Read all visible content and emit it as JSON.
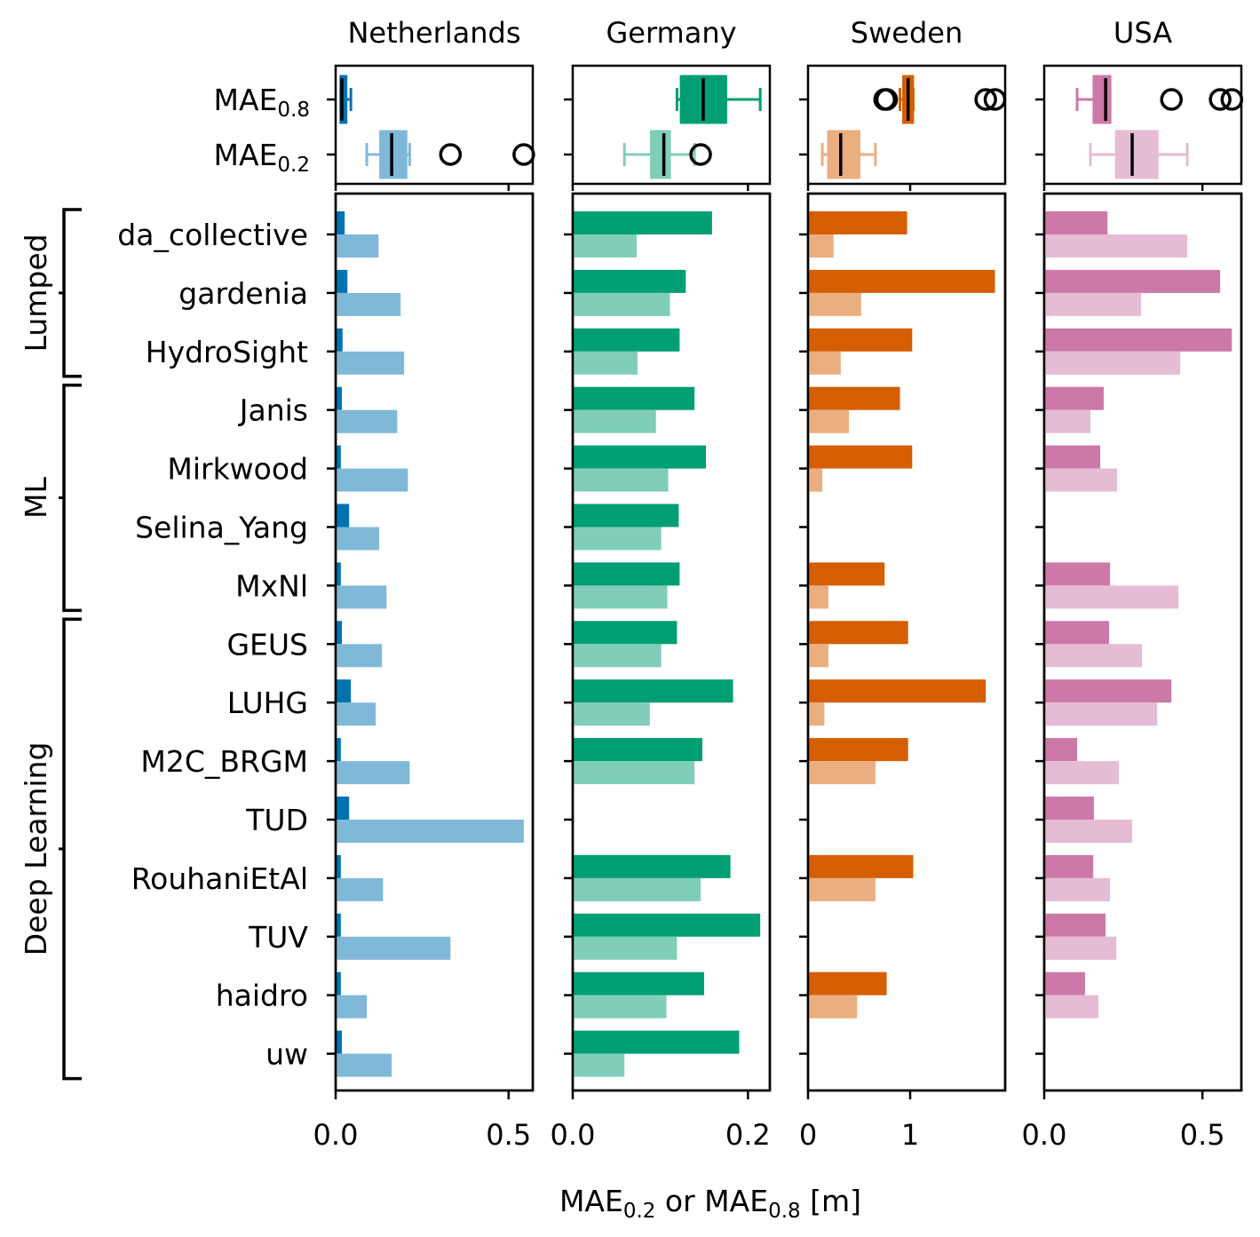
{
  "chart_data": {
    "type": "bar",
    "orientation": "horizontal",
    "xlabel_parts": {
      "a": "MAE",
      "a_sub": "0.2",
      "mid": " or ",
      "b": "MAE",
      "b_sub": "0.8",
      "unit": " [m]"
    },
    "boxplot_labels": [
      {
        "main": "MAE",
        "sub": "0.8"
      },
      {
        "main": "MAE",
        "sub": "0.2"
      }
    ],
    "categories": [
      "da_collective",
      "gardenia",
      "HydroSight",
      "Janis",
      "Mirkwood",
      "Selina_Yang",
      "MxNl",
      "GEUS",
      "LUHG",
      "M2C_BRGM",
      "TUD",
      "RouhaniEtAl",
      "TUV",
      "haidro",
      "uw"
    ],
    "groups": [
      {
        "label": "Lumped",
        "start": 0,
        "end": 2
      },
      {
        "label": "ML",
        "start": 3,
        "end": 6
      },
      {
        "label": "Deep Learning",
        "start": 7,
        "end": 14
      }
    ],
    "panels": [
      {
        "title": "Netherlands",
        "color_dark": "#0072B2",
        "color_light": "#80B8D8",
        "xlim": [
          0,
          0.57
        ],
        "ticks": [
          0.0,
          0.5
        ],
        "tick_labels": [
          "0.0",
          "0.5"
        ],
        "series": [
          {
            "name": "MAE0.8",
            "values": [
              0.026,
              0.034,
              0.02,
              0.018,
              0.015,
              0.039,
              0.015,
              0.018,
              0.044,
              0.015,
              0.039,
              0.015,
              0.015,
              0.015,
              0.018
            ]
          },
          {
            "name": "MAE0.2",
            "values": [
              0.124,
              0.188,
              0.198,
              0.178,
              0.209,
              0.126,
              0.147,
              0.134,
              0.116,
              0.214,
              0.544,
              0.137,
              0.332,
              0.09,
              0.162
            ]
          }
        ]
      },
      {
        "title": "Germany",
        "color_dark": "#009E73",
        "color_light": "#80CEB9",
        "xlim": [
          0,
          0.225
        ],
        "ticks": [
          0.0,
          0.2
        ],
        "tick_labels": [
          "0.0",
          "0.2"
        ],
        "series": [
          {
            "name": "MAE0.8",
            "values": [
              0.159,
              0.129,
              0.122,
              0.139,
              0.152,
              0.121,
              0.122,
              0.119,
              0.183,
              0.148,
              null,
              0.18,
              0.214,
              0.15,
              0.19
            ]
          },
          {
            "name": "MAE0.2",
            "values": [
              0.073,
              0.111,
              0.074,
              0.095,
              0.109,
              0.101,
              0.108,
              0.101,
              0.088,
              0.139,
              null,
              0.146,
              0.119,
              0.107,
              0.059
            ]
          }
        ]
      },
      {
        "title": "Sweden",
        "color_dark": "#D55E00",
        "color_light": "#EAAE80",
        "xlim": [
          0,
          1.93
        ],
        "ticks": [
          0,
          1
        ],
        "tick_labels": [
          "0",
          "1"
        ],
        "series": [
          {
            "name": "MAE0.8",
            "values": [
              0.97,
              1.83,
              1.02,
              0.9,
              1.02,
              null,
              0.75,
              0.98,
              1.74,
              0.98,
              null,
              1.03,
              null,
              0.77,
              null
            ]
          },
          {
            "name": "MAE0.2",
            "values": [
              0.25,
              0.52,
              0.32,
              0.4,
              0.14,
              null,
              0.2,
              0.2,
              0.16,
              0.66,
              null,
              0.66,
              null,
              0.48,
              null
            ]
          }
        ]
      },
      {
        "title": "USA",
        "color_dark": "#CC79A7",
        "color_light": "#E5BCD3",
        "xlim": [
          0,
          0.623
        ],
        "ticks": [
          0.0,
          0.5
        ],
        "tick_labels": [
          "0.0",
          "0.5"
        ],
        "series": [
          {
            "name": "MAE0.8",
            "values": [
              0.2,
              0.556,
              0.593,
              0.188,
              0.177,
              null,
              0.208,
              0.205,
              0.402,
              0.104,
              0.157,
              0.155,
              0.194,
              0.129,
              null
            ]
          },
          {
            "name": "MAE0.2",
            "values": [
              0.452,
              0.306,
              0.43,
              0.146,
              0.23,
              null,
              0.424,
              0.309,
              0.357,
              0.236,
              0.278,
              0.208,
              0.228,
              0.171,
              null
            ]
          }
        ]
      }
    ]
  }
}
